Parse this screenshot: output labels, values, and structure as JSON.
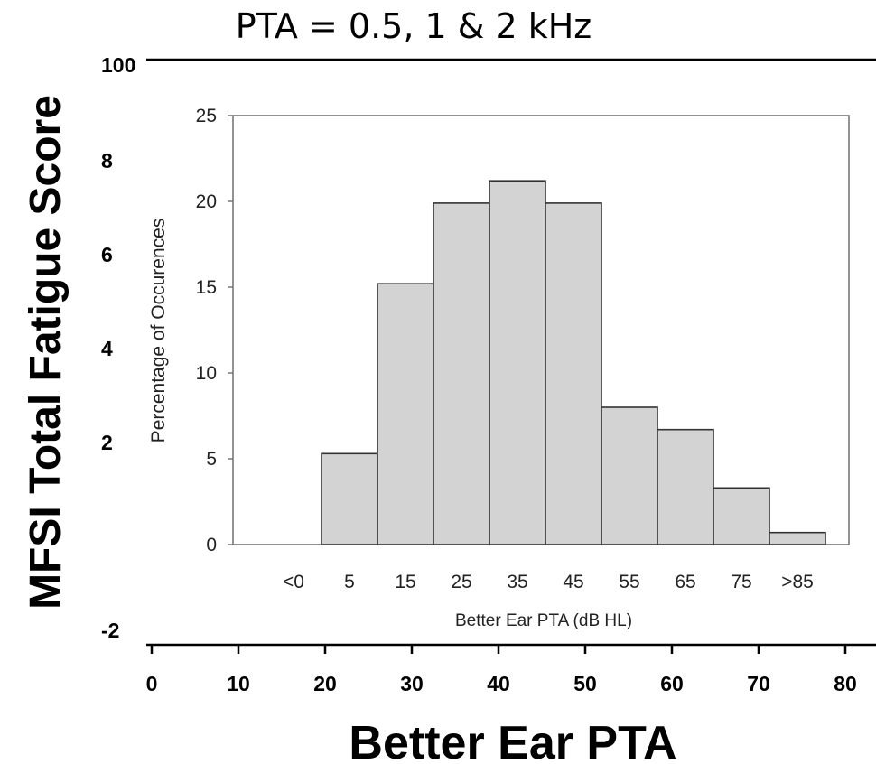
{
  "title": "PTA = 0.5, 1 & 2 kHz",
  "chart_data": [
    {
      "type": "scatter",
      "ylabel": "MFSI Total Fatigue Score",
      "xlabel": "Better Ear PTA",
      "xlim": [
        0,
        80
      ],
      "ylim": [
        -20,
        100
      ],
      "x_ticks": [
        "0",
        "10",
        "20",
        "30",
        "40",
        "50",
        "60",
        "70",
        "80"
      ],
      "y_ticks": [
        "100",
        "8",
        "6",
        "4",
        "2",
        "-2"
      ],
      "series": []
    },
    {
      "type": "bar",
      "xlabel": "Better Ear PTA (dB HL)",
      "ylabel": "Percentage of Occurences",
      "ylim": [
        0,
        25
      ],
      "y_ticks": [
        "0",
        "5",
        "10",
        "15",
        "20",
        "25"
      ],
      "categories": [
        "<0",
        "5",
        "15",
        "25",
        "35",
        "45",
        "55",
        "65",
        "75",
        ">85"
      ],
      "values": [
        0,
        5.3,
        15.2,
        19.9,
        21.2,
        19.9,
        8.0,
        6.7,
        3.3,
        0.7
      ]
    }
  ]
}
